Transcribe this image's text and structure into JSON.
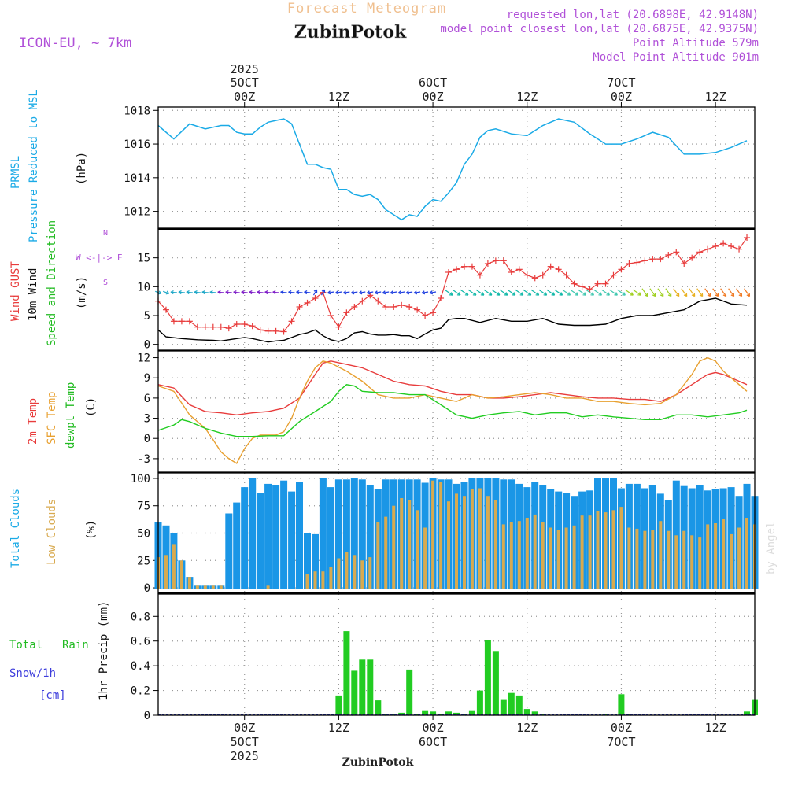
{
  "header": {
    "product": "Forecast Meteogram",
    "location": "ZubinPotok",
    "model": "ICON-EU, ~ 7km",
    "requested": "requested lon,lat (20.6898E, 42.9148N)",
    "closest": "model point closest lon,lat (20.6875E, 42.9375N)",
    "point_altitude": "Point Altitude 579m",
    "model_altitude": "Model Point Altitude 901m",
    "credit": "by Angel",
    "footer_location": "ZubinPotok"
  },
  "colors": {
    "pressure": "#1aaae6",
    "gust": "#e83c3c",
    "wind": "#000000",
    "t2m": "#e83c3c",
    "sfc": "#e8a030",
    "dewpt": "#22cc22",
    "total_cloud": "#1a96e6",
    "low_cloud": "#d8aa50",
    "rain": "#22cc22",
    "snow": "#3c3cdc",
    "title_pink": "#b050d8",
    "grid": "#999999"
  },
  "time_axis": {
    "top_ticks": [
      {
        "x": 12,
        "l1": "2025",
        "l2": "5OCT",
        "l3": "00Z"
      },
      {
        "x": 24,
        "l1": "",
        "l2": "",
        "l3": "12Z"
      },
      {
        "x": 36,
        "l1": "",
        "l2": "6OCT",
        "l3": "00Z"
      },
      {
        "x": 48,
        "l1": "",
        "l2": "",
        "l3": "12Z"
      },
      {
        "x": 60,
        "l1": "",
        "l2": "7OCT",
        "l3": "00Z"
      },
      {
        "x": 72,
        "l1": "",
        "l2": "",
        "l3": "12Z"
      }
    ],
    "bottom_ticks": [
      {
        "x": 12,
        "l1": "00Z",
        "l2": "5OCT",
        "l3": "2025"
      },
      {
        "x": 24,
        "l1": "12Z",
        "l2": "",
        "l3": ""
      },
      {
        "x": 36,
        "l1": "00Z",
        "l2": "6OCT",
        "l3": ""
      },
      {
        "x": 48,
        "l1": "12Z",
        "l2": "",
        "l3": ""
      },
      {
        "x": 60,
        "l1": "00Z",
        "l2": "7OCT",
        "l3": ""
      },
      {
        "x": 72,
        "l1": "12Z",
        "l2": "",
        "l3": ""
      }
    ]
  },
  "chart_data": [
    {
      "type": "line",
      "id": "pressure",
      "labels": [
        "PRMSL",
        "Pressure Reduced to MSL",
        "(hPa)"
      ],
      "yticks": [
        1012,
        1014,
        1016,
        1018
      ],
      "ylim": [
        1011,
        1018.2
      ],
      "xlim": [
        1,
        77
      ],
      "series": [
        {
          "name": "PRMSL",
          "x": [
            1,
            3,
            5,
            7,
            8,
            9,
            10,
            11,
            12,
            13,
            14,
            15,
            16,
            17,
            18,
            19,
            20,
            21,
            22,
            23,
            24,
            25,
            26,
            27,
            28,
            29,
            30,
            31,
            32,
            33,
            34,
            35,
            36,
            37,
            38,
            39,
            40,
            41,
            42,
            43,
            44,
            46,
            48,
            50,
            52,
            54,
            56,
            58,
            60,
            62,
            64,
            66,
            68,
            70,
            72,
            74,
            76
          ],
          "values": [
            1017.1,
            1016.3,
            1017.2,
            1016.9,
            1017.0,
            1017.1,
            1017.1,
            1016.7,
            1016.6,
            1016.6,
            1017.0,
            1017.3,
            1017.4,
            1017.5,
            1017.2,
            1016.0,
            1014.8,
            1014.8,
            1014.6,
            1014.5,
            1013.3,
            1013.3,
            1013.0,
            1012.9,
            1013.0,
            1012.7,
            1012.1,
            1011.8,
            1011.5,
            1011.8,
            1011.7,
            1012.3,
            1012.7,
            1012.6,
            1013.1,
            1013.7,
            1014.8,
            1015.4,
            1016.4,
            1016.8,
            1016.9,
            1016.6,
            1016.5,
            1017.1,
            1017.5,
            1017.3,
            1016.6,
            1016.0,
            1016.0,
            1016.3,
            1016.7,
            1016.4,
            1015.4,
            1015.4,
            1015.5,
            1015.8,
            1016.2
          ]
        }
      ]
    },
    {
      "type": "line",
      "id": "wind",
      "labels": [
        "Wind GUST",
        "10m Wind",
        "Speed and Direction",
        "(m/s)"
      ],
      "compass": [
        "N",
        "W <-|-> E",
        "S"
      ],
      "yticks": [
        0,
        5,
        10,
        15
      ],
      "ylim": [
        -1,
        20
      ],
      "xlim": [
        1,
        77
      ],
      "series": [
        {
          "name": "Wind GUST",
          "x": [
            1,
            2,
            3,
            4,
            5,
            6,
            7,
            8,
            9,
            10,
            11,
            12,
            13,
            14,
            15,
            16,
            17,
            18,
            19,
            20,
            21,
            22,
            23,
            24,
            25,
            26,
            27,
            28,
            29,
            30,
            31,
            32,
            33,
            34,
            35,
            36,
            37,
            38,
            39,
            40,
            41,
            42,
            43,
            44,
            45,
            46,
            47,
            48,
            49,
            50,
            51,
            52,
            53,
            54,
            55,
            56,
            57,
            58,
            59,
            60,
            61,
            62,
            63,
            64,
            65,
            66,
            67,
            68,
            69,
            70,
            71,
            72,
            73,
            74,
            75,
            76
          ],
          "values": [
            7.5,
            6.0,
            4.0,
            4.0,
            4.0,
            3.0,
            3.0,
            3.0,
            3.0,
            2.8,
            3.5,
            3.5,
            3.2,
            2.5,
            2.3,
            2.3,
            2.2,
            4.0,
            6.5,
            7.2,
            8.0,
            9.0,
            5.0,
            3.0,
            5.5,
            6.5,
            7.5,
            8.5,
            7.5,
            6.5,
            6.5,
            6.8,
            6.5,
            6.0,
            5.0,
            5.5,
            8.0,
            12.5,
            13.0,
            13.5,
            13.5,
            12.0,
            14.0,
            14.5,
            14.5,
            12.5,
            13.0,
            12.0,
            11.5,
            12.0,
            13.5,
            13.0,
            12.0,
            10.5,
            10.0,
            9.5,
            10.5,
            10.5,
            12.0,
            13.0,
            14.0,
            14.2,
            14.5,
            14.8,
            14.8,
            15.5,
            16.0,
            14.0,
            15.0,
            16.0,
            16.5,
            17.0,
            17.5,
            17.0,
            16.5,
            18.5
          ]
        },
        {
          "name": "10m Wind",
          "x": [
            1,
            2,
            4,
            6,
            8,
            9,
            10,
            11,
            12,
            13,
            14,
            15,
            16,
            17,
            18,
            19,
            20,
            21,
            22,
            23,
            24,
            25,
            26,
            27,
            28,
            29,
            30,
            31,
            32,
            33,
            34,
            35,
            36,
            37,
            38,
            39,
            40,
            42,
            44,
            46,
            48,
            50,
            52,
            54,
            56,
            58,
            60,
            62,
            64,
            66,
            68,
            70,
            72,
            74,
            76
          ],
          "values": [
            2.5,
            1.3,
            1.0,
            0.8,
            0.7,
            0.6,
            0.8,
            1.0,
            1.2,
            1.0,
            0.7,
            0.4,
            0.6,
            0.7,
            1.2,
            1.7,
            2.0,
            2.5,
            1.5,
            0.8,
            0.5,
            1.0,
            2.0,
            2.2,
            1.8,
            1.6,
            1.6,
            1.7,
            1.5,
            1.5,
            1.0,
            1.8,
            2.5,
            2.8,
            4.3,
            4.5,
            4.5,
            3.8,
            4.5,
            4.0,
            4.0,
            4.5,
            3.5,
            3.3,
            3.3,
            3.5,
            4.5,
            5.0,
            5.0,
            5.5,
            6.0,
            7.5,
            8.0,
            7.0,
            6.8
          ]
        }
      ],
      "direction_row": {
        "y": 9,
        "x_start": 1,
        "x_end": 77
      }
    },
    {
      "type": "line",
      "id": "temperature",
      "labels": [
        "2m Temp",
        "SFC Temp",
        "dewpt Temp",
        "(C)"
      ],
      "yticks": [
        -3,
        0,
        3,
        6,
        9,
        12
      ],
      "ylim": [
        -5,
        13
      ],
      "xlim": [
        1,
        77
      ],
      "series": [
        {
          "name": "2m Temp",
          "x": [
            1,
            3,
            5,
            7,
            9,
            11,
            13,
            15,
            17,
            19,
            21,
            22,
            23,
            25,
            27,
            29,
            31,
            33,
            35,
            37,
            39,
            41,
            43,
            45,
            47,
            49,
            51,
            53,
            55,
            57,
            59,
            61,
            63,
            65,
            67,
            69,
            71,
            72,
            73,
            75,
            76
          ],
          "values": [
            8.0,
            7.5,
            5.0,
            4.0,
            3.8,
            3.5,
            3.8,
            4.0,
            4.5,
            6.0,
            9.5,
            11.2,
            11.5,
            11.0,
            10.5,
            9.5,
            8.5,
            8.0,
            7.8,
            7.0,
            6.5,
            6.5,
            6.0,
            6.0,
            6.2,
            6.5,
            6.8,
            6.5,
            6.2,
            6.0,
            6.0,
            5.8,
            5.8,
            5.5,
            6.5,
            8.0,
            9.5,
            9.8,
            9.5,
            8.5,
            8.0
          ]
        },
        {
          "name": "SFC Temp",
          "x": [
            1,
            3,
            5,
            7,
            8,
            9,
            10,
            11,
            12,
            13,
            14,
            15,
            16,
            17,
            18,
            19,
            20,
            21,
            22,
            23,
            25,
            27,
            29,
            31,
            33,
            35,
            37,
            39,
            41,
            43,
            45,
            47,
            49,
            51,
            53,
            55,
            57,
            59,
            61,
            63,
            65,
            67,
            69,
            70,
            71,
            72,
            73,
            75,
            76
          ],
          "values": [
            7.8,
            7.0,
            3.5,
            1.5,
            -0.2,
            -2.0,
            -3.0,
            -3.7,
            -1.5,
            0.0,
            0.5,
            0.5,
            0.5,
            1.0,
            3.0,
            6.0,
            8.5,
            10.5,
            11.5,
            11.2,
            10.0,
            8.5,
            6.5,
            6.0,
            6.0,
            6.5,
            6.0,
            5.5,
            6.5,
            6.0,
            6.2,
            6.5,
            6.8,
            6.5,
            6.0,
            6.0,
            5.5,
            5.5,
            5.2,
            5.0,
            5.2,
            6.5,
            9.5,
            11.5,
            12.0,
            11.5,
            10.0,
            8.0,
            7.0
          ]
        },
        {
          "name": "dewpt Temp",
          "x": [
            1,
            3,
            4,
            5,
            7,
            9,
            11,
            13,
            15,
            17,
            19,
            21,
            23,
            24,
            25,
            26,
            27,
            29,
            31,
            33,
            35,
            37,
            39,
            41,
            43,
            45,
            47,
            49,
            51,
            53,
            55,
            57,
            59,
            61,
            63,
            65,
            67,
            69,
            71,
            73,
            75,
            76
          ],
          "values": [
            1.2,
            2.0,
            2.8,
            2.5,
            1.5,
            0.8,
            0.3,
            0.3,
            0.4,
            0.4,
            2.5,
            4.0,
            5.5,
            7.0,
            8.0,
            7.8,
            7.0,
            6.8,
            6.8,
            6.5,
            6.5,
            5.0,
            3.5,
            3.0,
            3.5,
            3.8,
            4.0,
            3.5,
            3.8,
            3.8,
            3.2,
            3.5,
            3.2,
            3.0,
            2.8,
            2.8,
            3.5,
            3.5,
            3.2,
            3.5,
            3.8,
            4.2
          ]
        }
      ]
    },
    {
      "type": "bar",
      "id": "clouds",
      "labels": [
        "Total Clouds",
        "Low Clouds",
        "(%)"
      ],
      "yticks": [
        0,
        25,
        50,
        75,
        100
      ],
      "ylim": [
        -5,
        105
      ],
      "xlim": [
        1,
        77
      ],
      "x": [
        1,
        2,
        3,
        4,
        5,
        6,
        7,
        8,
        9,
        10,
        11,
        12,
        13,
        14,
        15,
        16,
        17,
        18,
        19,
        20,
        21,
        22,
        23,
        24,
        25,
        26,
        27,
        28,
        29,
        30,
        31,
        32,
        33,
        34,
        35,
        36,
        37,
        38,
        39,
        40,
        41,
        42,
        43,
        44,
        45,
        46,
        47,
        48,
        49,
        50,
        51,
        52,
        53,
        54,
        55,
        56,
        57,
        58,
        59,
        60,
        61,
        62,
        63,
        64,
        65,
        66,
        67,
        68,
        69,
        70,
        71,
        72,
        73,
        74,
        75,
        76,
        77
      ],
      "series": [
        {
          "name": "Total Clouds",
          "values": [
            60,
            57,
            50,
            25,
            10,
            2,
            2,
            2,
            2,
            68,
            78,
            92,
            100,
            87,
            95,
            94,
            98,
            88,
            97,
            50,
            49,
            100,
            92,
            99,
            99,
            100,
            99,
            94,
            90,
            99,
            99,
            99,
            99,
            99,
            96,
            100,
            99,
            99,
            95,
            97,
            100,
            100,
            100,
            100,
            99,
            99,
            95,
            92,
            97,
            94,
            90,
            88,
            87,
            84,
            88,
            89,
            100,
            100,
            100,
            91,
            95,
            95,
            91,
            94,
            86,
            80,
            98,
            93,
            91,
            94,
            89,
            90,
            91,
            92,
            84,
            95,
            84
          ]
        },
        {
          "name": "Low Clouds",
          "values": [
            28,
            30,
            40,
            25,
            10,
            2,
            2,
            2,
            2,
            0,
            0,
            0,
            0,
            0,
            2,
            0,
            0,
            0,
            0,
            13,
            15,
            15,
            19,
            27,
            33,
            30,
            25,
            28,
            60,
            65,
            75,
            82,
            80,
            71,
            55,
            98,
            97,
            79,
            86,
            84,
            90,
            91,
            84,
            80,
            58,
            60,
            61,
            64,
            67,
            60,
            55,
            53,
            55,
            57,
            66,
            66,
            70,
            69,
            71,
            74,
            55,
            54,
            52,
            53,
            61,
            52,
            48,
            52,
            48,
            46,
            58,
            59,
            63,
            49,
            55,
            64,
            58
          ]
        }
      ]
    },
    {
      "type": "bar",
      "id": "precip",
      "labels": [
        "Total",
        "Rain",
        "Snow/1h",
        "[cm]",
        "1hr Precip (mm)"
      ],
      "yticks": [
        0,
        0.2,
        0.4,
        0.6,
        0.8
      ],
      "ylim": [
        0,
        0.98
      ],
      "xlim": [
        1,
        77
      ],
      "x": [
        24,
        25,
        26,
        27,
        28,
        29,
        30,
        31,
        32,
        33,
        34,
        35,
        36,
        37,
        38,
        39,
        40,
        41,
        42,
        43,
        44,
        45,
        46,
        47,
        48,
        49,
        50,
        58,
        60,
        61,
        76,
        77
      ],
      "series": [
        {
          "name": "Rain",
          "values": [
            0.16,
            0.68,
            0.36,
            0.45,
            0.45,
            0.12,
            0.01,
            0.01,
            0.02,
            0.37,
            0.01,
            0.04,
            0.03,
            0.01,
            0.03,
            0.02,
            0.01,
            0.04,
            0.2,
            0.61,
            0.52,
            0.13,
            0.18,
            0.16,
            0.05,
            0.03,
            0.01,
            0.01,
            0.17,
            0.01,
            0.03,
            0.13
          ]
        }
      ]
    }
  ]
}
